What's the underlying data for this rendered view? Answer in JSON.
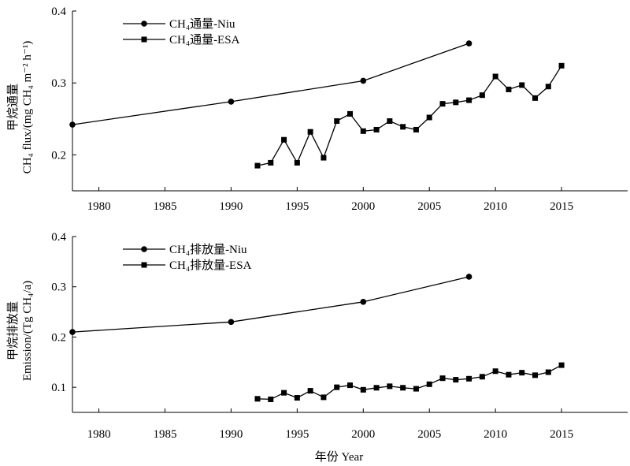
{
  "chart_data": [
    {
      "type": "line",
      "ylabel_cn": "甲烷通量",
      "ylabel_en": "CH₄ flux/(mg CH₄ m⁻² h⁻¹)",
      "xlim": [
        1978,
        2020
      ],
      "ylim": [
        0.15,
        0.4
      ],
      "xticks": [
        1980,
        1985,
        1990,
        1995,
        2000,
        2005,
        2010,
        2015
      ],
      "yticks": [
        0.2,
        0.3,
        0.4
      ],
      "ytick_labels": [
        "0.2",
        "0.3",
        "0.4"
      ],
      "legend_position": "top-left",
      "series": [
        {
          "name": "CH₄通量-Niu",
          "marker": "circle",
          "x": [
            1978,
            1990,
            2000,
            2008
          ],
          "y": [
            0.242,
            0.274,
            0.303,
            0.355
          ]
        },
        {
          "name": "CH₄通量-ESA",
          "marker": "square",
          "x": [
            1992,
            1993,
            1994,
            1995,
            1996,
            1997,
            1998,
            1999,
            2000,
            2001,
            2002,
            2003,
            2004,
            2005,
            2006,
            2007,
            2008,
            2009,
            2010,
            2011,
            2012,
            2013,
            2014,
            2015
          ],
          "y": [
            0.185,
            0.189,
            0.221,
            0.189,
            0.232,
            0.196,
            0.247,
            0.257,
            0.233,
            0.235,
            0.247,
            0.239,
            0.235,
            0.252,
            0.271,
            0.273,
            0.276,
            0.283,
            0.309,
            0.291,
            0.297,
            0.279,
            0.295,
            0.324
          ]
        }
      ]
    },
    {
      "type": "line",
      "ylabel_cn": "甲烷排放量",
      "ylabel_en": "Emission/(Tg CH₄/a)",
      "xlabel": "年份 Year",
      "xlim": [
        1978,
        2020
      ],
      "ylim": [
        0.05,
        0.4
      ],
      "xticks": [
        1980,
        1985,
        1990,
        1995,
        2000,
        2005,
        2010,
        2015
      ],
      "yticks": [
        0.1,
        0.2,
        0.3,
        0.4
      ],
      "ytick_labels": [
        "0.1",
        "0.2",
        "0.3",
        "0.4"
      ],
      "legend_position": "top-left",
      "series": [
        {
          "name": "CH₄排放量-Niu",
          "marker": "circle",
          "x": [
            1978,
            1990,
            2000,
            2008
          ],
          "y": [
            0.21,
            0.23,
            0.27,
            0.32
          ]
        },
        {
          "name": "CH₄排放量-ESA",
          "marker": "square",
          "x": [
            1992,
            1993,
            1994,
            1995,
            1996,
            1997,
            1998,
            1999,
            2000,
            2001,
            2002,
            2003,
            2004,
            2005,
            2006,
            2007,
            2008,
            2009,
            2010,
            2011,
            2012,
            2013,
            2014,
            2015
          ],
          "y": [
            0.077,
            0.076,
            0.089,
            0.079,
            0.093,
            0.08,
            0.1,
            0.104,
            0.095,
            0.099,
            0.102,
            0.099,
            0.097,
            0.106,
            0.118,
            0.115,
            0.117,
            0.121,
            0.132,
            0.125,
            0.129,
            0.124,
            0.13,
            0.144
          ]
        }
      ]
    }
  ]
}
